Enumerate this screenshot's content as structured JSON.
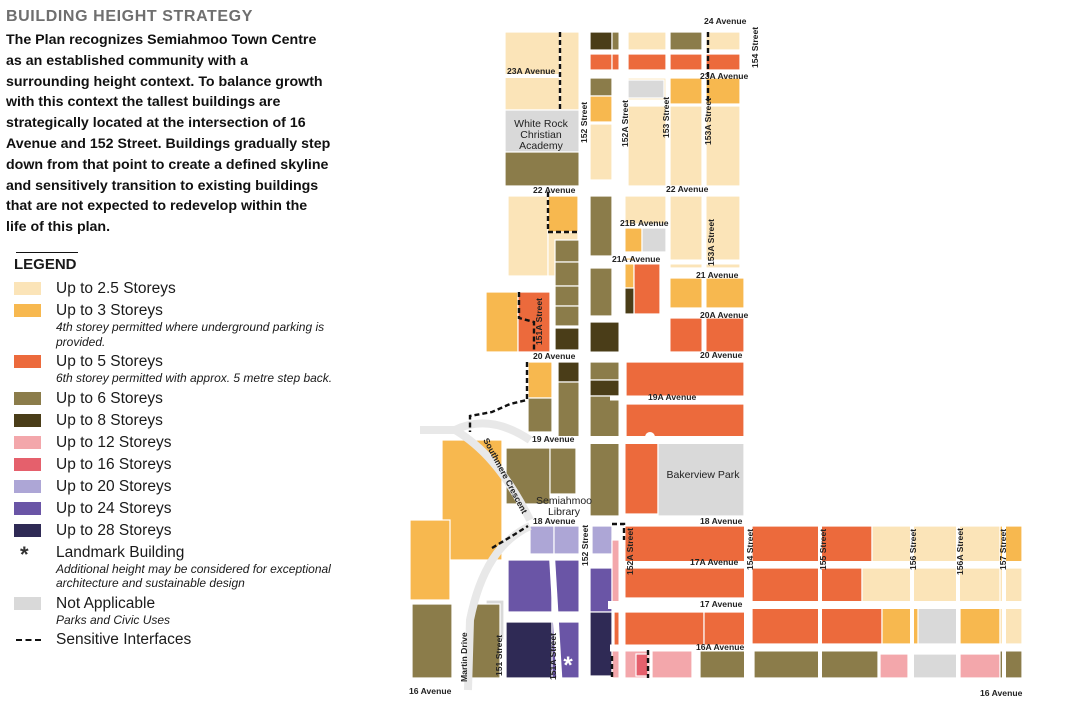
{
  "heading": "BUILDING HEIGHT STRATEGY",
  "intro": "The Plan recognizes Semiahmoo Town Centre as an established community with a surrounding height context. To balance growth with this context the tallest buildings are strategically located at the intersection of 16 Avenue and 152 Street. Buildings gradually step down from that point to create a defined skyline and sensitively transition to existing buildings that are not expected to redevelop within the life of this plan.",
  "legend": {
    "title": "LEGEND",
    "items": [
      {
        "label": "Up to 2.5 Storeys",
        "note": "",
        "color": "#fbe4b8"
      },
      {
        "label": "Up to 3 Storeys",
        "note": "4th storey permitted where underground parking is provided.",
        "color": "#f7b84f"
      },
      {
        "label": "Up to 5 Storeys",
        "note": "6th storey permitted with approx. 5 metre step back.",
        "color": "#ec6a3c"
      },
      {
        "label": "Up to 6 Storeys",
        "note": "",
        "color": "#8b7c4a"
      },
      {
        "label": "Up to 8 Storeys",
        "note": "",
        "color": "#4a3d18"
      },
      {
        "label": "Up to 12 Storeys",
        "note": "",
        "color": "#f3a7ab"
      },
      {
        "label": "Up to 16 Storeys",
        "note": "",
        "color": "#e5606c"
      },
      {
        "label": "Up to 20 Storeys",
        "note": "",
        "color": "#ada6d6"
      },
      {
        "label": "Up to 24 Storeys",
        "note": "",
        "color": "#6a55a6"
      },
      {
        "label": "Up to 28 Storeys",
        "note": "",
        "color": "#2f2a55"
      }
    ],
    "landmark": {
      "symbol": "*",
      "label": "Landmark Building",
      "note": "Additional height may be considered for exceptional architecture and sustainable design"
    },
    "not_applicable": {
      "label": "Not Applicable",
      "note": "Parks and Civic Uses",
      "color": "#d9d9d9"
    },
    "sensitive": {
      "label": "Sensitive Interfaces"
    }
  },
  "map": {
    "streets": {
      "ave_24": "24 Avenue",
      "ave_23a_w": "23A Avenue",
      "ave_23a_e": "23A Avenue",
      "ave_22_w": "22 Avenue",
      "ave_22_e": "22 Avenue",
      "ave_21b": "21B Avenue",
      "ave_21a": "21A Avenue",
      "ave_21": "21 Avenue",
      "ave_20a": "20A Avenue",
      "ave_20_w": "20 Avenue",
      "ave_20_e": "20 Avenue",
      "ave_19a": "19A Avenue",
      "ave_19": "19 Avenue",
      "ave_18_w": "18 Avenue",
      "ave_18_e": "18 Avenue",
      "ave_17a": "17A Avenue",
      "ave_17": "17 Avenue",
      "ave_16a": "16A Avenue",
      "ave_16_w": "16 Avenue",
      "ave_16_e": "16 Avenue",
      "st_152": "152 Street",
      "st_152_s": "152 Street",
      "st_152a": "152A Street",
      "st_152a_s": "152A Street",
      "st_153": "153 Street",
      "st_153a": "153A Street",
      "st_153a_s": "153A Street",
      "st_154": "154 Street",
      "st_154_s": "154 Street",
      "st_155": "155 Street",
      "st_156": "156 Street",
      "st_156a": "156A Street",
      "st_157": "157 Street",
      "st_151a": "151A Street",
      "st_151a_s": "151A Street",
      "st_151": "151 Street",
      "southmere": "Southmere Crescent",
      "martin": "Martin Drive"
    },
    "places": {
      "white_rock": [
        "White Rock",
        "Christian",
        "Academy"
      ],
      "library": [
        "Semiahmoo",
        "Library"
      ],
      "bakerview": "Bakerview Park"
    },
    "landmark_symbol": "*"
  }
}
